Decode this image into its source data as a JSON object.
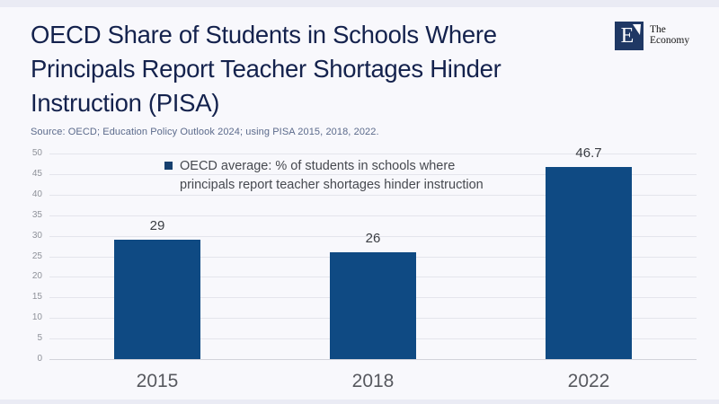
{
  "window": {
    "background": "#F8F8FC",
    "edge_color": "#EAEBF4"
  },
  "header": {
    "title": "OECD Share of Students in Schools Where Principals Report Teacher Shortages Hinder Instruction (PISA)",
    "title_lines": [
      "OECD Share of Students in Schools Where",
      "Principals Report Teacher Shortages Hinder",
      "Instruction (PISA)"
    ],
    "title_color": "#14224D",
    "source": "Source: OECD; Education Policy Outlook 2024; using PISA 2015, 2018, 2022.",
    "logo": {
      "letter": "E",
      "name_line1": "The",
      "name_line2": "Economy",
      "square_color": "#1F3864"
    }
  },
  "chart_data": {
    "type": "bar",
    "title": "",
    "xlabel": "",
    "ylabel": "",
    "categories": [
      "2015",
      "2018",
      "2022"
    ],
    "values": [
      29,
      26,
      46.7
    ],
    "value_labels": [
      "29",
      "26",
      "46.7"
    ],
    "legend": "OECD average: % of students in schools where principals report teacher shortages hinder instruction",
    "legend_lines": [
      "OECD average: % of students in schools where",
      "principals report teacher shortages hinder instruction"
    ],
    "legend_position": "top-inside",
    "legend_marker_color": "#16406F",
    "ylim": [
      0,
      50
    ],
    "yticks": [
      0,
      5,
      10,
      15,
      20,
      25,
      30,
      35,
      40,
      45,
      50
    ],
    "grid": true,
    "bar_color": "#0F4A83"
  }
}
